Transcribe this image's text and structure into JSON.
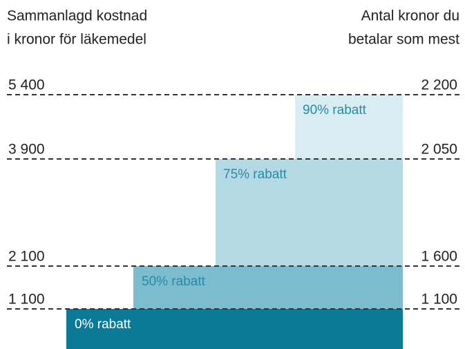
{
  "header": {
    "left_title": [
      "Sammanlagd kostnad",
      "i kronor för läkemedel"
    ],
    "right_title": [
      "Antal kronor du",
      "betalar som mest"
    ]
  },
  "left_labels": [
    "5 400",
    "3 900",
    "2 100",
    "1 100"
  ],
  "right_labels": [
    "2 200",
    "2 050",
    "1 600",
    "1 100"
  ],
  "steps": [
    "0% rabatt",
    "50% rabatt",
    "75% rabatt",
    "90% rabatt"
  ]
}
